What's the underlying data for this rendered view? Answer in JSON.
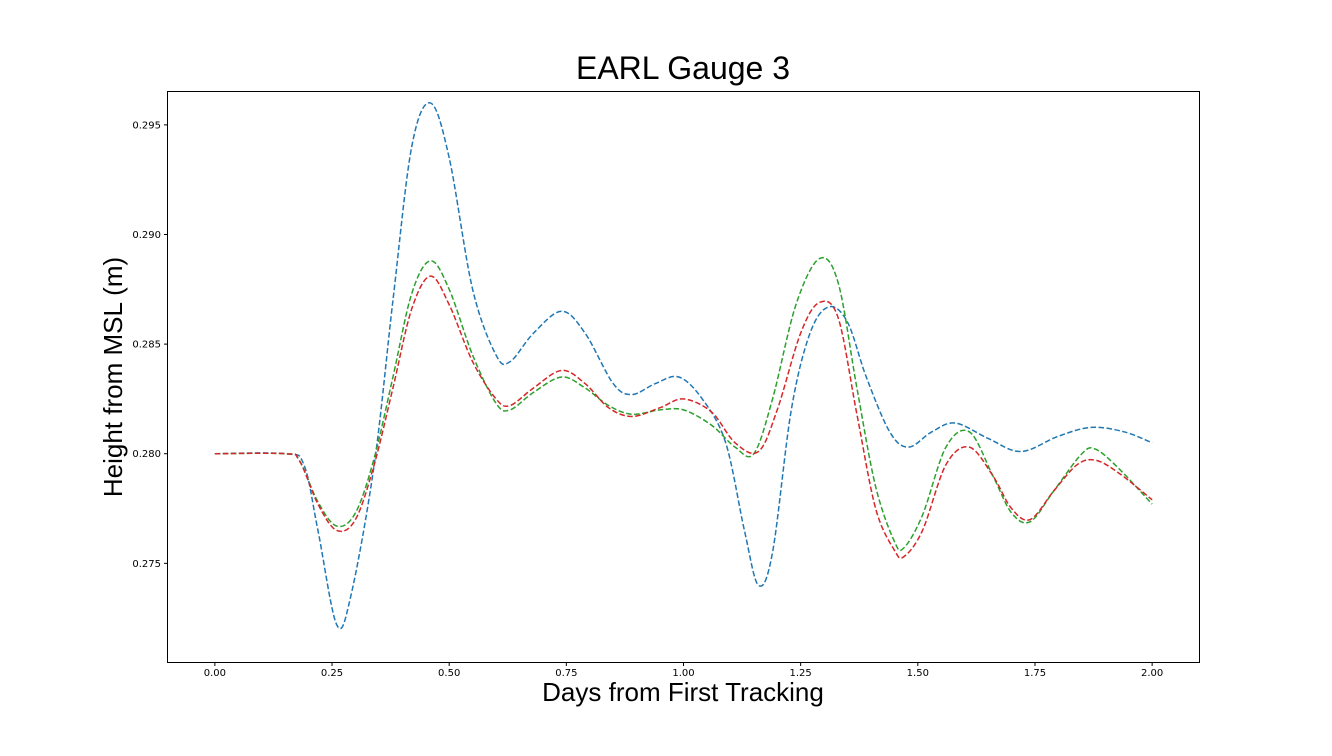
{
  "chart_data": {
    "type": "line",
    "title": "EARL Gauge 3",
    "xlabel": "Days from First Tracking",
    "ylabel": "Height from MSL (m)",
    "xlim": [
      -0.1,
      2.1
    ],
    "ylim": [
      0.2705,
      0.2965
    ],
    "xticks": [
      0.0,
      0.25,
      0.5,
      0.75,
      1.0,
      1.25,
      1.5,
      1.75,
      2.0
    ],
    "xtick_labels": [
      "0.00",
      "0.25",
      "0.50",
      "0.75",
      "1.00",
      "1.25",
      "1.50",
      "1.75",
      "2.00"
    ],
    "yticks": [
      0.275,
      0.28,
      0.285,
      0.29,
      0.295
    ],
    "ytick_labels": [
      "0.275",
      "0.280",
      "0.285",
      "0.290",
      "0.295"
    ],
    "grid": false,
    "series": [
      {
        "name": "blue",
        "color": "#1f77b4",
        "style": "dashed",
        "points": [
          [
            0.0,
            0.28
          ],
          [
            0.15,
            0.28
          ],
          [
            0.19,
            0.2795
          ],
          [
            0.22,
            0.2765
          ],
          [
            0.26,
            0.2722
          ],
          [
            0.29,
            0.2735
          ],
          [
            0.34,
            0.2795
          ],
          [
            0.38,
            0.287
          ],
          [
            0.42,
            0.294
          ],
          [
            0.46,
            0.296
          ],
          [
            0.5,
            0.2935
          ],
          [
            0.55,
            0.2875
          ],
          [
            0.6,
            0.2845
          ],
          [
            0.63,
            0.2842
          ],
          [
            0.68,
            0.2855
          ],
          [
            0.74,
            0.2865
          ],
          [
            0.79,
            0.2855
          ],
          [
            0.85,
            0.2832
          ],
          [
            0.89,
            0.2827
          ],
          [
            0.94,
            0.2832
          ],
          [
            0.99,
            0.2835
          ],
          [
            1.04,
            0.2825
          ],
          [
            1.09,
            0.2805
          ],
          [
            1.13,
            0.2765
          ],
          [
            1.16,
            0.274
          ],
          [
            1.19,
            0.2755
          ],
          [
            1.23,
            0.282
          ],
          [
            1.27,
            0.2855
          ],
          [
            1.31,
            0.2867
          ],
          [
            1.35,
            0.286
          ],
          [
            1.39,
            0.2835
          ],
          [
            1.44,
            0.281
          ],
          [
            1.48,
            0.2803
          ],
          [
            1.53,
            0.281
          ],
          [
            1.58,
            0.2814
          ],
          [
            1.65,
            0.2807
          ],
          [
            1.72,
            0.2801
          ],
          [
            1.8,
            0.2808
          ],
          [
            1.87,
            0.2812
          ],
          [
            1.94,
            0.281
          ],
          [
            2.0,
            0.2805
          ]
        ]
      },
      {
        "name": "green",
        "color": "#2ca02c",
        "style": "dashed",
        "points": [
          [
            0.0,
            0.28
          ],
          [
            0.15,
            0.28
          ],
          [
            0.18,
            0.2797
          ],
          [
            0.22,
            0.2778
          ],
          [
            0.26,
            0.2767
          ],
          [
            0.3,
            0.2773
          ],
          [
            0.34,
            0.2798
          ],
          [
            0.38,
            0.2835
          ],
          [
            0.42,
            0.2873
          ],
          [
            0.46,
            0.2888
          ],
          [
            0.5,
            0.2875
          ],
          [
            0.55,
            0.2845
          ],
          [
            0.6,
            0.2823
          ],
          [
            0.63,
            0.282
          ],
          [
            0.68,
            0.2828
          ],
          [
            0.74,
            0.2835
          ],
          [
            0.79,
            0.283
          ],
          [
            0.84,
            0.2822
          ],
          [
            0.89,
            0.2818
          ],
          [
            0.95,
            0.282
          ],
          [
            1.0,
            0.282
          ],
          [
            1.06,
            0.2813
          ],
          [
            1.11,
            0.2803
          ],
          [
            1.15,
            0.28
          ],
          [
            1.19,
            0.2825
          ],
          [
            1.24,
            0.2868
          ],
          [
            1.29,
            0.2889
          ],
          [
            1.33,
            0.2878
          ],
          [
            1.37,
            0.283
          ],
          [
            1.41,
            0.2785
          ],
          [
            1.45,
            0.276
          ],
          [
            1.47,
            0.2757
          ],
          [
            1.51,
            0.2772
          ],
          [
            1.56,
            0.2803
          ],
          [
            1.61,
            0.281
          ],
          [
            1.66,
            0.279
          ],
          [
            1.7,
            0.2773
          ],
          [
            1.74,
            0.2769
          ],
          [
            1.79,
            0.2783
          ],
          [
            1.85,
            0.28
          ],
          [
            1.88,
            0.2802
          ],
          [
            1.93,
            0.2793
          ],
          [
            2.0,
            0.2777
          ]
        ]
      },
      {
        "name": "red",
        "color": "#d62728",
        "style": "dashed",
        "points": [
          [
            0.0,
            0.28
          ],
          [
            0.15,
            0.28
          ],
          [
            0.18,
            0.2797
          ],
          [
            0.22,
            0.2777
          ],
          [
            0.26,
            0.2765
          ],
          [
            0.3,
            0.277
          ],
          [
            0.34,
            0.2795
          ],
          [
            0.38,
            0.283
          ],
          [
            0.42,
            0.2866
          ],
          [
            0.46,
            0.2881
          ],
          [
            0.5,
            0.2868
          ],
          [
            0.55,
            0.2842
          ],
          [
            0.6,
            0.2825
          ],
          [
            0.63,
            0.2822
          ],
          [
            0.68,
            0.283
          ],
          [
            0.74,
            0.2838
          ],
          [
            0.79,
            0.2832
          ],
          [
            0.84,
            0.2821
          ],
          [
            0.89,
            0.2817
          ],
          [
            0.95,
            0.2821
          ],
          [
            1.0,
            0.2825
          ],
          [
            1.06,
            0.2819
          ],
          [
            1.11,
            0.2805
          ],
          [
            1.16,
            0.2801
          ],
          [
            1.2,
            0.282
          ],
          [
            1.25,
            0.2855
          ],
          [
            1.29,
            0.2869
          ],
          [
            1.33,
            0.2862
          ],
          [
            1.37,
            0.2818
          ],
          [
            1.41,
            0.2775
          ],
          [
            1.45,
            0.2756
          ],
          [
            1.47,
            0.2753
          ],
          [
            1.51,
            0.2765
          ],
          [
            1.56,
            0.2795
          ],
          [
            1.61,
            0.2803
          ],
          [
            1.66,
            0.279
          ],
          [
            1.7,
            0.2775
          ],
          [
            1.74,
            0.277
          ],
          [
            1.79,
            0.2783
          ],
          [
            1.84,
            0.2795
          ],
          [
            1.88,
            0.2797
          ],
          [
            1.93,
            0.2791
          ],
          [
            2.0,
            0.2779
          ]
        ]
      }
    ]
  }
}
